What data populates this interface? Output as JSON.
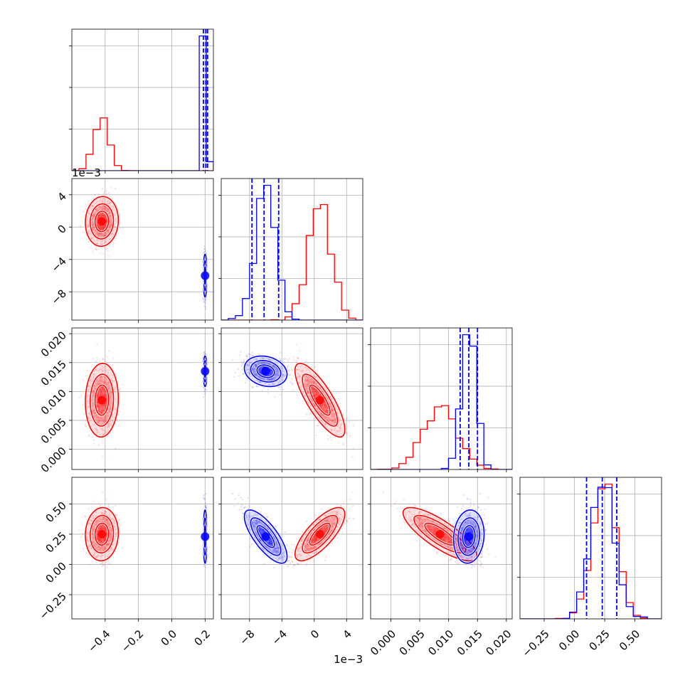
{
  "chart_data": {
    "type": "corner",
    "colors": {
      "red": "#ff0000",
      "blue": "#0000ff"
    },
    "grid": true,
    "parameters": [
      {
        "ticks": [
          -0.4,
          -0.2,
          0.0,
          0.2
        ],
        "tick_labels": [
          "−0.4",
          "−0.2",
          "0.0",
          "0.2"
        ],
        "range": [
          -0.6,
          0.25
        ],
        "offset_label": ""
      },
      {
        "ticks": [
          -0.008,
          -0.004,
          0.0,
          0.004
        ],
        "tick_labels": [
          "−8",
          "−4",
          "0",
          "4"
        ],
        "range": [
          -0.0115,
          0.006
        ],
        "offset_label": "1e−3"
      },
      {
        "ticks": [
          0.0,
          0.005,
          0.01,
          0.015,
          0.02
        ],
        "tick_labels": [
          "0.000",
          "0.005",
          "0.010",
          "0.015",
          "0.020"
        ],
        "range": [
          -0.0035,
          0.021
        ],
        "offset_label": ""
      },
      {
        "ticks": [
          -0.25,
          0.0,
          0.25,
          0.5
        ],
        "tick_labels": [
          "−0.25",
          "0.00",
          "0.25",
          "0.50"
        ],
        "range": [
          -0.45,
          0.72
        ],
        "offset_label": ""
      }
    ],
    "series": [
      {
        "color": "red",
        "mean": [
          -0.42,
          0.0007,
          0.0085,
          0.25
        ],
        "std": [
          0.045,
          0.0014,
          0.0029,
          0.1
        ],
        "correlations": [
          [
            1,
            0.05,
            0.05,
            0.05
          ],
          [
            0.05,
            1,
            -0.8,
            0.75
          ],
          [
            0.05,
            -0.8,
            1,
            -0.8
          ],
          [
            0.05,
            0.75,
            -0.8,
            1
          ]
        ],
        "quantiles": []
      },
      {
        "color": "blue",
        "mean": [
          0.2,
          -0.006,
          0.0135,
          0.23
        ],
        "std": [
          0.005,
          0.0012,
          0.0012,
          0.1
        ],
        "correlations": [
          [
            1,
            0,
            0,
            0
          ],
          [
            0,
            1,
            -0.2,
            -0.75
          ],
          [
            0,
            -0.2,
            1,
            0.1
          ],
          [
            0,
            -0.75,
            0.1,
            1
          ]
        ],
        "quantiles": [
          [
            0.19,
            0.205,
            0.215
          ],
          [
            -0.0077,
            -0.0062,
            -0.0044
          ],
          [
            0.012,
            0.0135,
            0.015
          ],
          [
            0.1,
            0.23,
            0.35
          ]
        ]
      }
    ]
  }
}
